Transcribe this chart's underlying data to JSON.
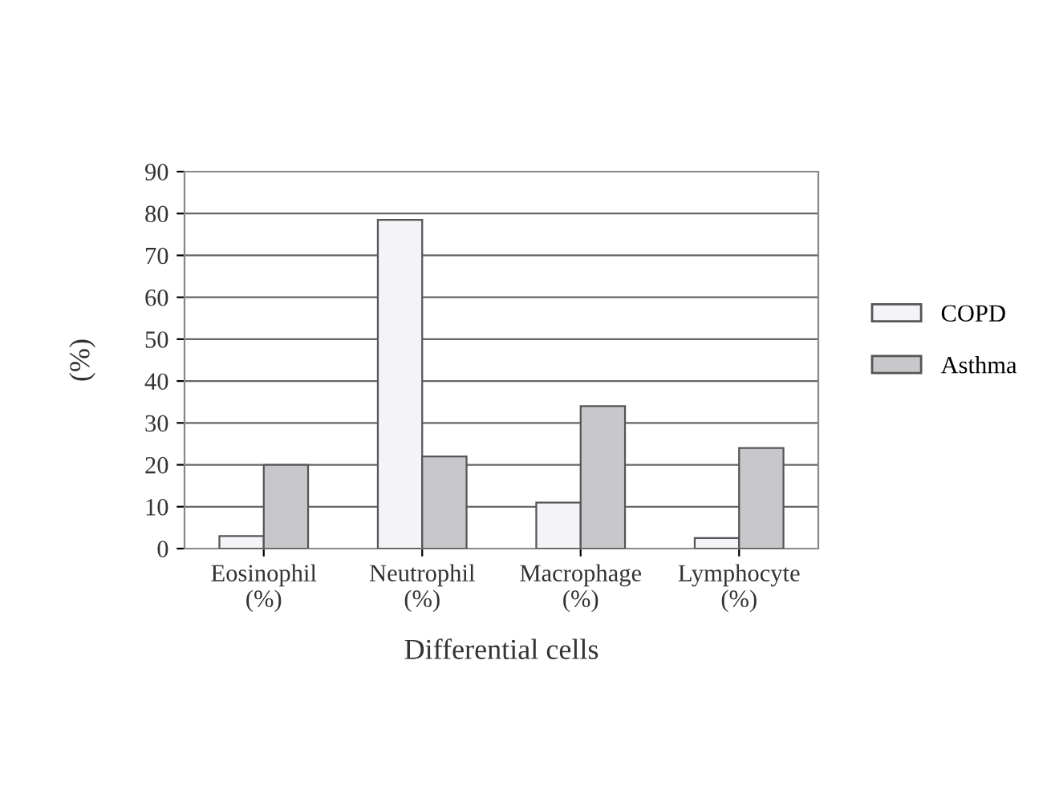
{
  "chart_data": {
    "type": "bar",
    "xlabel": "Differential cells",
    "ylabel": "(%)",
    "categories": [
      "Eosinophil\n(%)",
      "Neutrophil\n(%)",
      "Macrophage\n(%)",
      "Lymphocyte\n(%)"
    ],
    "series": [
      {
        "name": "COPD",
        "color": "#f4f4f8",
        "values": [
          3,
          78.5,
          11,
          2.5
        ]
      },
      {
        "name": "Asthma",
        "color": "#c8c8cc",
        "values": [
          20,
          22,
          34,
          24
        ]
      }
    ],
    "ylim": [
      0,
      90
    ],
    "yticks": [
      0,
      10,
      20,
      30,
      40,
      50,
      60,
      70,
      80,
      90
    ],
    "grid": "y",
    "legend": "right"
  }
}
